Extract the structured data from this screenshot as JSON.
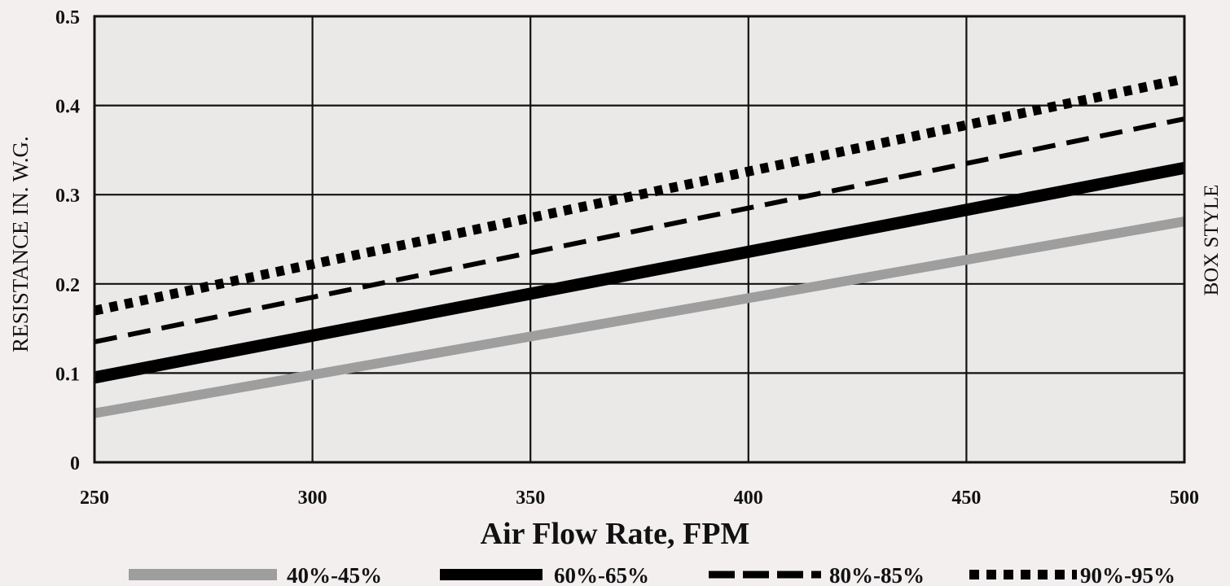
{
  "chart_data": {
    "type": "line",
    "title": "",
    "xlabel": "Air Flow Rate, FPM",
    "ylabel": "RESISTANCE IN. W.G.",
    "side_label": "BOX STYLE",
    "xlim": [
      250,
      500
    ],
    "ylim": [
      0,
      0.5
    ],
    "x_ticks": [
      250,
      300,
      350,
      400,
      450,
      500
    ],
    "y_ticks": [
      0,
      0.1,
      0.2,
      0.3,
      0.4,
      0.5
    ],
    "x_tick_labels": [
      "250",
      "300",
      "350",
      "400",
      "450",
      "500"
    ],
    "y_tick_labels": [
      "0",
      "0.1",
      "0.2",
      "0.3",
      "0.4",
      "0.5"
    ],
    "grid": true,
    "legend_position": "bottom",
    "series": [
      {
        "name": "40%-45%",
        "x": [
          250,
          500
        ],
        "y": [
          0.055,
          0.27
        ],
        "style": "solid-light",
        "color": "#9e9e9e"
      },
      {
        "name": "60%-65%",
        "x": [
          250,
          500
        ],
        "y": [
          0.095,
          0.33
        ],
        "style": "solid-heavy",
        "color": "#000000"
      },
      {
        "name": "80%-85%",
        "x": [
          250,
          500
        ],
        "y": [
          0.135,
          0.385
        ],
        "style": "dashed",
        "color": "#000000"
      },
      {
        "name": "90%-95%",
        "x": [
          250,
          500
        ],
        "y": [
          0.17,
          0.43
        ],
        "style": "dotted",
        "color": "#000000"
      }
    ]
  }
}
